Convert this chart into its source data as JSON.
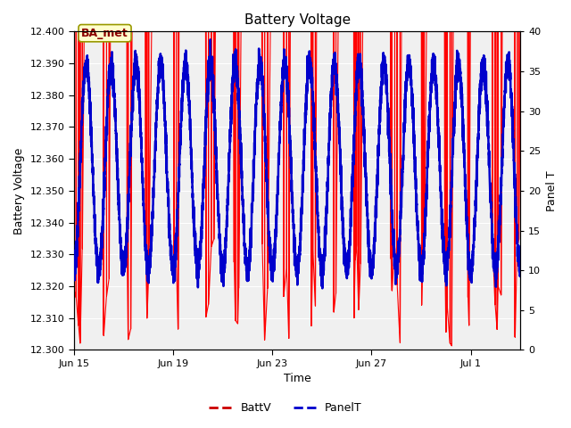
{
  "title": "Battery Voltage",
  "xlabel": "Time",
  "ylabel_left": "Battery Voltage",
  "ylabel_right": "Panel T",
  "ylim_left": [
    12.3,
    12.4
  ],
  "ylim_right": [
    0,
    40
  ],
  "yticks_left": [
    12.3,
    12.31,
    12.32,
    12.33,
    12.34,
    12.35,
    12.36,
    12.37,
    12.38,
    12.39,
    12.4
  ],
  "yticks_right": [
    0,
    5,
    10,
    15,
    20,
    25,
    30,
    35,
    40
  ],
  "xlim_days": [
    0,
    18
  ],
  "xtick_positions": [
    0,
    4,
    8,
    12,
    16
  ],
  "xtick_labels": [
    "Jun 15",
    "Jun 19",
    "Jun 23",
    "Jun 27",
    "Jul 1"
  ],
  "annotation_text": "BA_met",
  "fig_bg_color": "#ffffff",
  "plot_bg_color": "#f0f0f0",
  "batt_color": "#ff0000",
  "panel_color": "#0000cc",
  "batt_linewidth": 0.8,
  "panel_linewidth": 1.8,
  "grid_color": "#d0d0d0"
}
